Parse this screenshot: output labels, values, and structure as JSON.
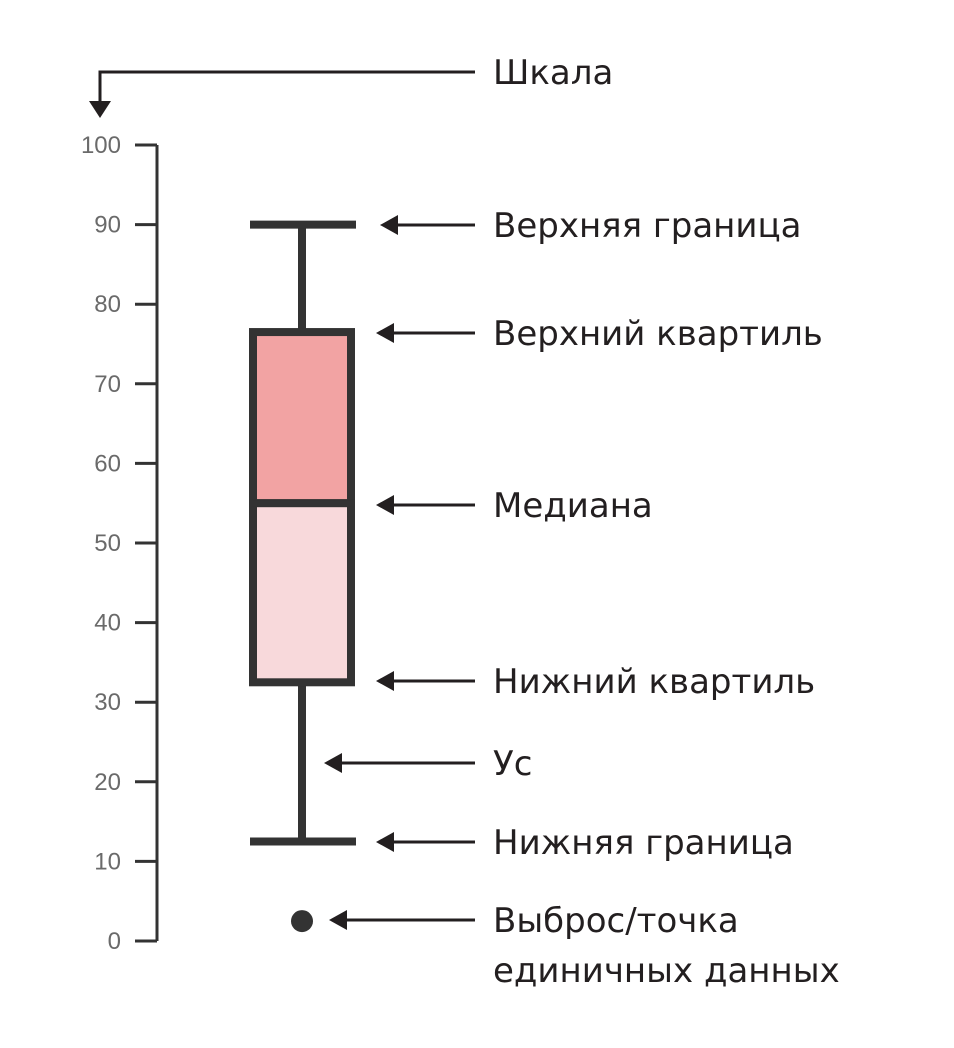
{
  "scale": {
    "label": "Шкала",
    "min": 0,
    "max": 100,
    "ticks": [
      {
        "value": 0,
        "label": "0"
      },
      {
        "value": 10,
        "label": "10"
      },
      {
        "value": 20,
        "label": "20"
      },
      {
        "value": 30,
        "label": "30"
      },
      {
        "value": 40,
        "label": "40"
      },
      {
        "value": 50,
        "label": "50"
      },
      {
        "value": 60,
        "label": "60"
      },
      {
        "value": 70,
        "label": "70"
      },
      {
        "value": 80,
        "label": "80"
      },
      {
        "value": 90,
        "label": "90"
      },
      {
        "value": 100,
        "label": "100"
      }
    ]
  },
  "boxplot": {
    "upper_bound": 90,
    "upper_quartile": 76.5,
    "median": 55,
    "lower_quartile": 32.5,
    "lower_bound": 12.5,
    "outlier": 2.5
  },
  "annotations": {
    "upper_bound": "Верхняя граница",
    "upper_quartile": "Верхний квартиль",
    "median": "Медиана",
    "lower_quartile": "Нижний квартиль",
    "whisker": "Ус",
    "lower_bound": "Нижняя граница",
    "outlier_line1": "Выброс/точка",
    "outlier_line2": "единичных данных"
  },
  "colors": {
    "stroke": "#333333",
    "upper_box_fill": "#f2a3a3",
    "lower_box_fill": "#f8d9db",
    "tick_text": "#6a6a6a",
    "label_text": "#231f20"
  }
}
